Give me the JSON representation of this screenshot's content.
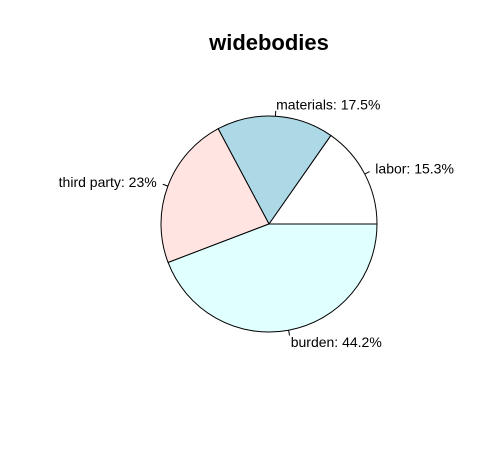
{
  "chart_data": {
    "type": "pie",
    "title": "widebodies",
    "slices": [
      {
        "label": "labor",
        "value": 15.3,
        "display": "labor: 15.3%",
        "color": "#ffffff"
      },
      {
        "label": "materials",
        "value": 17.5,
        "display": "materials: 17.5%",
        "color": "#add8e6"
      },
      {
        "label": "third party",
        "value": 23.0,
        "display": "third party: 23%",
        "color": "#ffe4e1"
      },
      {
        "label": "burden",
        "value": 44.2,
        "display": "burden: 44.2%",
        "color": "#e0ffff"
      }
    ],
    "start_angle_deg": 0,
    "direction": "counterclockwise",
    "legend": "none",
    "grid": false
  }
}
